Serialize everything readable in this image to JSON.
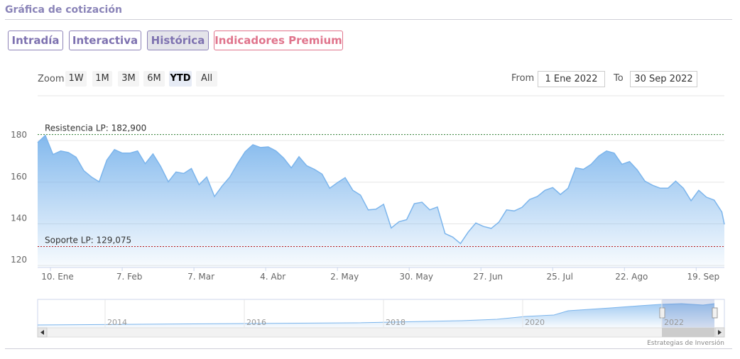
{
  "header": {
    "title": "Gráfica de cotización"
  },
  "tabs": [
    "Intradía",
    "Interactiva",
    "Histórica",
    "Indicadores Premium"
  ],
  "active_tab": 2,
  "zoom": {
    "label": "Zoom",
    "buttons": [
      "1W",
      "1M",
      "3M",
      "6M",
      "YTD",
      "All"
    ],
    "active": 4
  },
  "range": {
    "from_label": "From",
    "from": "1 Ene 2022",
    "to_label": "To",
    "to": "30 Sep 2022"
  },
  "chart_data": {
    "type": "area",
    "color": "#7cb5ec",
    "x": [
      "2022-01-05",
      "2022-01-08",
      "2022-01-11",
      "2022-01-14",
      "2022-01-17",
      "2022-01-20",
      "2022-01-23",
      "2022-01-26",
      "2022-01-29",
      "2022-02-01",
      "2022-02-04",
      "2022-02-07",
      "2022-02-10",
      "2022-02-13",
      "2022-02-16",
      "2022-02-19",
      "2022-02-22",
      "2022-02-25",
      "2022-02-28",
      "2022-03-03",
      "2022-03-06",
      "2022-03-09",
      "2022-03-12",
      "2022-03-15",
      "2022-03-18",
      "2022-03-21",
      "2022-03-24",
      "2022-03-27",
      "2022-03-30",
      "2022-04-02",
      "2022-04-05",
      "2022-04-08",
      "2022-04-11",
      "2022-04-14",
      "2022-04-17",
      "2022-04-20",
      "2022-04-23",
      "2022-04-26",
      "2022-04-29",
      "2022-05-02",
      "2022-05-05",
      "2022-05-08",
      "2022-05-11",
      "2022-05-14",
      "2022-05-17",
      "2022-05-20",
      "2022-05-23",
      "2022-05-26",
      "2022-05-29",
      "2022-06-01",
      "2022-06-04",
      "2022-06-07",
      "2022-06-10",
      "2022-06-13",
      "2022-06-16",
      "2022-06-19",
      "2022-06-22",
      "2022-06-25",
      "2022-06-28",
      "2022-07-01",
      "2022-07-04",
      "2022-07-07",
      "2022-07-10",
      "2022-07-13",
      "2022-07-16",
      "2022-07-19",
      "2022-07-22",
      "2022-07-25",
      "2022-07-28",
      "2022-07-31",
      "2022-08-03",
      "2022-08-06",
      "2022-08-09",
      "2022-08-12",
      "2022-08-15",
      "2022-08-18",
      "2022-08-21",
      "2022-08-24",
      "2022-08-27",
      "2022-08-30",
      "2022-09-02",
      "2022-09-05",
      "2022-09-08",
      "2022-09-11",
      "2022-09-14",
      "2022-09-17",
      "2022-09-20",
      "2022-09-23",
      "2022-09-26",
      "2022-09-29",
      "2022-09-30"
    ],
    "values": [
      179.0,
      182.5,
      173.3,
      175.0,
      174.3,
      172.0,
      165.6,
      162.5,
      160.2,
      170.6,
      175.7,
      174.0,
      174.0,
      175.0,
      168.9,
      173.6,
      167.6,
      160.2,
      164.9,
      164.2,
      166.6,
      158.8,
      162.5,
      153.1,
      158.2,
      162.5,
      168.9,
      174.7,
      178.0,
      176.7,
      177.0,
      175.0,
      171.6,
      166.9,
      172.3,
      167.9,
      166.2,
      163.9,
      157.1,
      159.8,
      162.2,
      156.1,
      153.8,
      146.7,
      147.0,
      149.4,
      138.0,
      141.0,
      142.0,
      149.7,
      150.4,
      146.7,
      148.1,
      135.3,
      133.6,
      130.5,
      136.0,
      140.4,
      138.7,
      137.8,
      140.8,
      146.7,
      146.2,
      147.9,
      151.7,
      153.1,
      156.1,
      157.4,
      154.1,
      157.1,
      166.9,
      166.2,
      168.6,
      172.6,
      175.0,
      174.0,
      168.6,
      169.9,
      165.9,
      160.5,
      158.5,
      157.1,
      157.1,
      160.5,
      157.1,
      151.1,
      156.1,
      152.8,
      151.4,
      145.7,
      139.7
    ],
    "xlim": [
      "2022-01-05",
      "2022-09-30"
    ],
    "xticks": [
      {
        "value": "2022-01-10",
        "label": "10. Ene"
      },
      {
        "value": "2022-02-07",
        "label": "7. Feb"
      },
      {
        "value": "2022-03-07",
        "label": "7. Mar"
      },
      {
        "value": "2022-04-04",
        "label": "4. Abr"
      },
      {
        "value": "2022-05-02",
        "label": "2. May"
      },
      {
        "value": "2022-05-30",
        "label": "30. May"
      },
      {
        "value": "2022-06-27",
        "label": "27. Jun"
      },
      {
        "value": "2022-07-25",
        "label": "25. Jul"
      },
      {
        "value": "2022-08-22",
        "label": "22. Ago"
      },
      {
        "value": "2022-09-19",
        "label": "19. Sep"
      }
    ],
    "ylim": [
      119,
      192
    ],
    "yticks": [
      120,
      140,
      160,
      180
    ],
    "grid": true,
    "plot_lines": [
      {
        "label": "Resistencia LP: 182,900",
        "value": 182.9,
        "color": "#2e7d32"
      },
      {
        "label": "Soporte LP: 129,075",
        "value": 129.075,
        "color": "#b71c1c"
      }
    ]
  },
  "navigator": {
    "labels": [
      "2014",
      "2016",
      "2018",
      "2020",
      "2022"
    ]
  },
  "credits": "Estrategias de Inversión"
}
